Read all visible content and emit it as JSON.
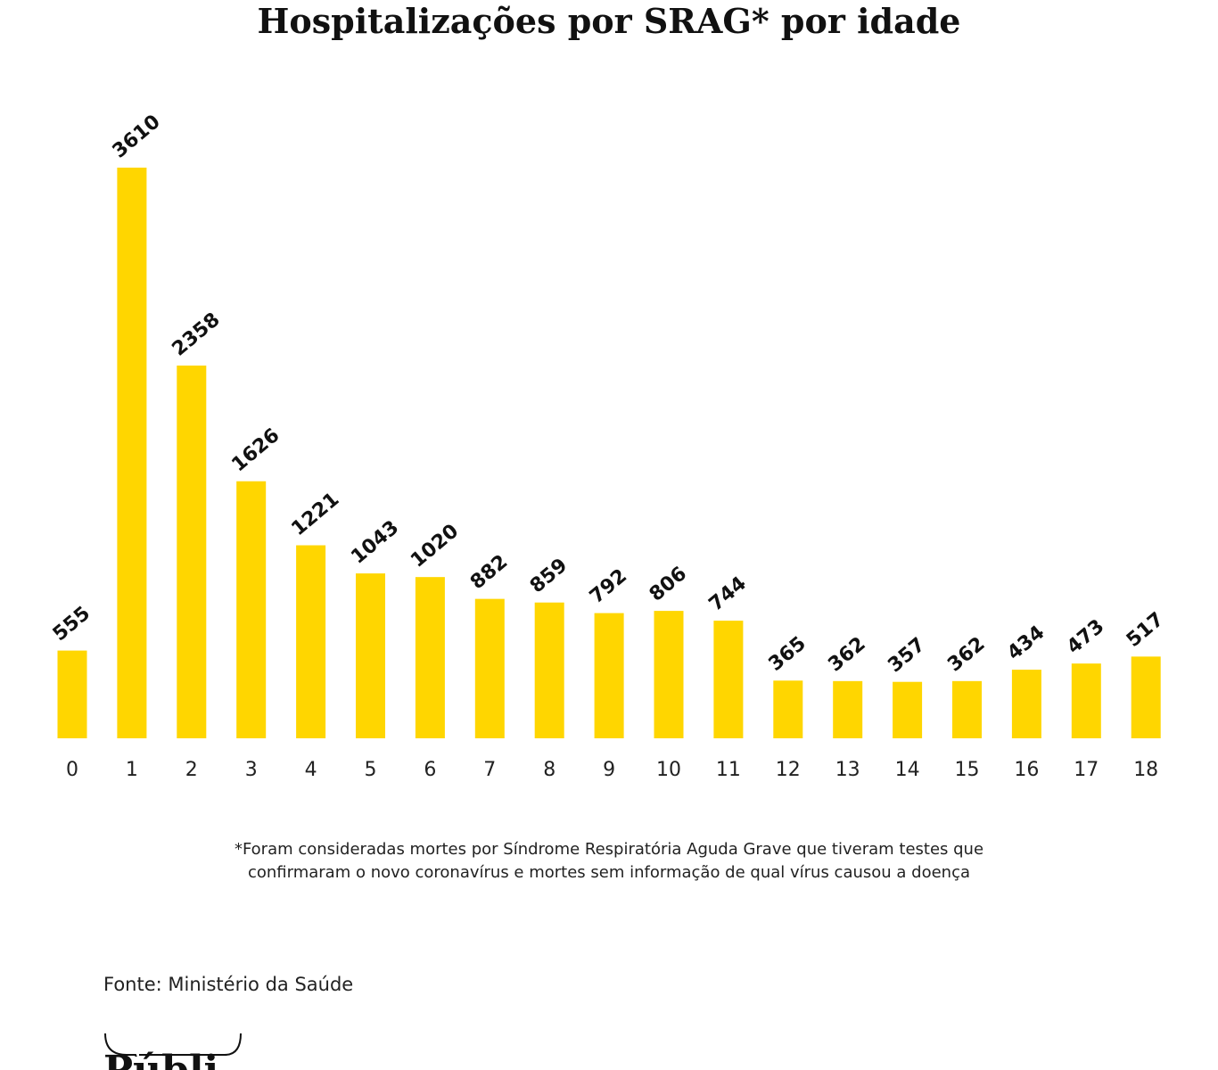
{
  "chart_data": {
    "type": "bar",
    "title": "Hospitalizações por SRAG* por idade",
    "categories": [
      "0",
      "1",
      "2",
      "3",
      "4",
      "5",
      "6",
      "7",
      "8",
      "9",
      "10",
      "11",
      "12",
      "13",
      "14",
      "15",
      "16",
      "17",
      "18"
    ],
    "values": [
      555,
      3610,
      2358,
      1626,
      1221,
      1043,
      1020,
      882,
      859,
      792,
      806,
      744,
      365,
      362,
      357,
      362,
      434,
      473,
      517
    ],
    "xlabel": "",
    "ylabel": "",
    "ylim": [
      0,
      3610
    ],
    "grid": false,
    "bar_color": "#FFD600",
    "data_labels": true
  },
  "footnote": {
    "line1": "*Foram consideradas mortes por Síndrome Respiratória Aguda Grave que tiveram testes que",
    "line2": "confirmaram o novo coronavírus e mortes sem informação de qual vírus causou a doença"
  },
  "source": "Fonte: Ministério da Saúde",
  "logo_text": "Pública"
}
